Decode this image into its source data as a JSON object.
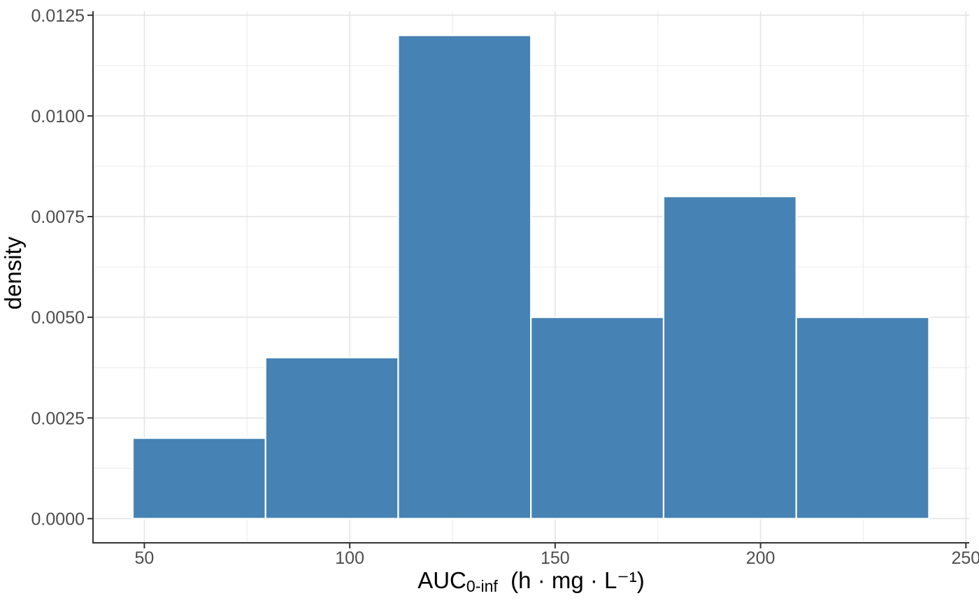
{
  "chart_data": {
    "type": "bar",
    "subtype": "histogram",
    "title": "",
    "xlabel": "AUC0-inf  (h · mg · L⁻¹)",
    "xlabel_parts": {
      "base": "AUC",
      "subscript": "0-inf",
      "units": "  (h · mg · L⁻¹)"
    },
    "ylabel": "density",
    "legend": "none",
    "grid": true,
    "bins": [
      {
        "x_start": 47.2,
        "x_end": 79.5,
        "density": 0.002
      },
      {
        "x_start": 79.5,
        "x_end": 111.8,
        "density": 0.004
      },
      {
        "x_start": 111.8,
        "x_end": 144.1,
        "density": 0.012
      },
      {
        "x_start": 144.1,
        "x_end": 176.4,
        "density": 0.005
      },
      {
        "x_start": 176.4,
        "x_end": 208.7,
        "density": 0.008
      },
      {
        "x_start": 208.7,
        "x_end": 241.0,
        "density": 0.005
      }
    ],
    "xlim": [
      37.5,
      250.8
    ],
    "ylim": [
      -0.0006,
      0.0126
    ],
    "x_ticks": {
      "values": [
        50,
        100,
        150,
        200,
        250
      ],
      "labels": [
        "50",
        "100",
        "150",
        "200",
        "250"
      ]
    },
    "x_minor_ticks": [
      75,
      125,
      175,
      225
    ],
    "y_ticks": {
      "values": [
        0,
        0.0025,
        0.005,
        0.0075,
        0.01,
        0.0125
      ],
      "labels": [
        "0.0000",
        "0.0025",
        "0.0050",
        "0.0075",
        "0.0100",
        "0.0125"
      ]
    },
    "y_minor_ticks": [
      0.00125,
      0.00375,
      0.00625,
      0.00875,
      0.01125
    ],
    "colors": {
      "bar_fill": "#4682B4",
      "bar_stroke": "#FFFFFF",
      "background": "#FFFFFF",
      "grid_major": "#E2E2E2",
      "grid_minor": "#EDEDED",
      "axis_line": "#333333",
      "tick_mark": "#333333",
      "tick_label": "#4D4D4D",
      "axis_title": "#000000"
    }
  }
}
